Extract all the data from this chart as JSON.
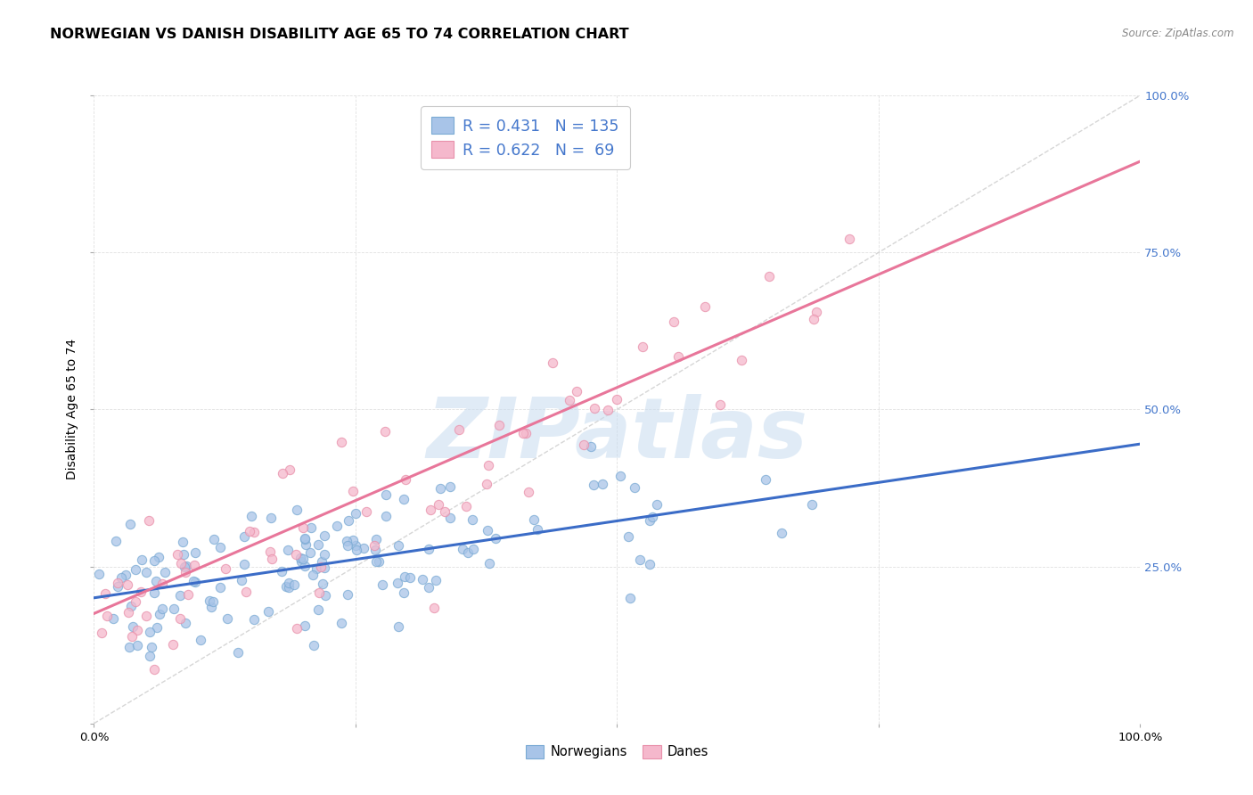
{
  "title": "NORWEGIAN VS DANISH DISABILITY AGE 65 TO 74 CORRELATION CHART",
  "source": "Source: ZipAtlas.com",
  "ylabel": "Disability Age 65 to 74",
  "xlim": [
    0.0,
    1.0
  ],
  "ylim": [
    0.0,
    1.0
  ],
  "xticks": [
    0.0,
    0.25,
    0.5,
    0.75,
    1.0
  ],
  "yticks": [
    0.0,
    0.25,
    0.5,
    0.75,
    1.0
  ],
  "xticklabels": [
    "0.0%",
    "",
    "",
    "",
    "100.0%"
  ],
  "yticklabels_left": [
    "",
    "",
    "",
    "",
    ""
  ],
  "yticklabels_right": [
    "",
    "25.0%",
    "50.0%",
    "75.0%",
    "100.0%"
  ],
  "blue_marker_color": "#A8C4E8",
  "blue_marker_edge": "#7AAAD4",
  "pink_marker_color": "#F5B8CC",
  "pink_marker_edge": "#E890AA",
  "blue_line_color": "#3B6CC7",
  "pink_line_color": "#E8769A",
  "diag_line_color": "#CCCCCC",
  "watermark_color": "#C8DCF0",
  "watermark_text": "ZIPatlas",
  "R_norwegian": 0.431,
  "N_norwegian": 135,
  "R_danish": 0.622,
  "N_danish": 69,
  "legend_label_norwegian": "Norwegians",
  "legend_label_danish": "Danes",
  "title_fontsize": 11.5,
  "axis_label_fontsize": 10,
  "tick_fontsize": 9.5,
  "right_tick_color": "#4477CC",
  "legend_text_color": "#4477CC",
  "blue_intercept": 0.2,
  "blue_slope": 0.245,
  "pink_intercept": 0.175,
  "pink_slope": 0.72,
  "nor_seed": 12,
  "dan_seed": 37,
  "grid_color": "#E0E0E0",
  "background_color": "#FFFFFF"
}
